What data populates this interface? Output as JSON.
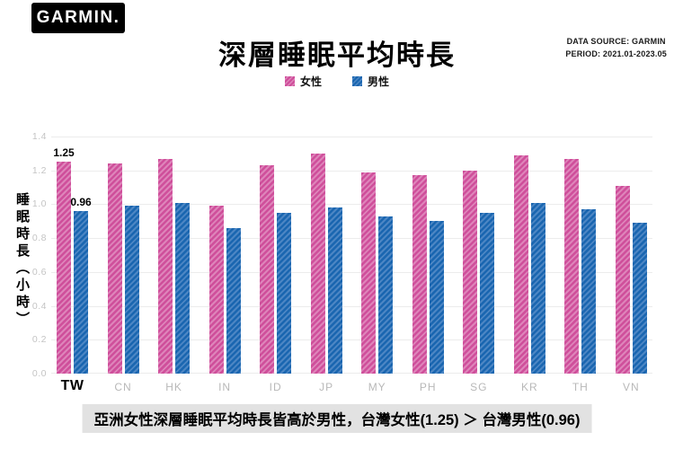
{
  "header": {
    "logo_text": "GARMIN.",
    "title": "深層睡眠平均時長",
    "source_line1": "DATA SOURCE: GARMIN",
    "source_line2": "PERIOD: 2021.01-2023.05"
  },
  "legend": {
    "female_label": "女性",
    "male_label": "男性"
  },
  "chart_data": {
    "type": "bar",
    "title": "深層睡眠平均時長",
    "categories": [
      "TW",
      "CN",
      "HK",
      "IN",
      "ID",
      "JP",
      "MY",
      "PH",
      "SG",
      "KR",
      "TH",
      "VN"
    ],
    "series": [
      {
        "name": "女性",
        "color": "#cf4f9b",
        "stripe_color": "#de84ba",
        "values": [
          1.25,
          1.24,
          1.27,
          0.99,
          1.23,
          1.3,
          1.19,
          1.17,
          1.2,
          1.29,
          1.27,
          1.11
        ]
      },
      {
        "name": "男性",
        "color": "#1a66b0",
        "stripe_color": "#4c86c4",
        "values": [
          0.96,
          0.99,
          1.01,
          0.86,
          0.95,
          0.98,
          0.93,
          0.9,
          0.95,
          1.01,
          0.97,
          0.89
        ]
      }
    ],
    "ylabel": "睡眠時長（小時）",
    "xlabel": "",
    "ylim": [
      0,
      1.4
    ],
    "ytick_step": 0.2,
    "yticks": [
      "0.0",
      "0.2",
      "0.4",
      "0.6",
      "0.8",
      "1.0",
      "1.2",
      "1.4"
    ],
    "grid": true,
    "legend_position": "top-center",
    "highlight_category": "TW",
    "annotations": [
      {
        "category": "TW",
        "series": "女性",
        "text": "1.25"
      },
      {
        "category": "TW",
        "series": "男性",
        "text": "0.96"
      }
    ]
  },
  "caption": "亞洲女性深層睡眠平均時長皆高於男性，台灣女性(1.25) ＞ 台灣男性(0.96)"
}
